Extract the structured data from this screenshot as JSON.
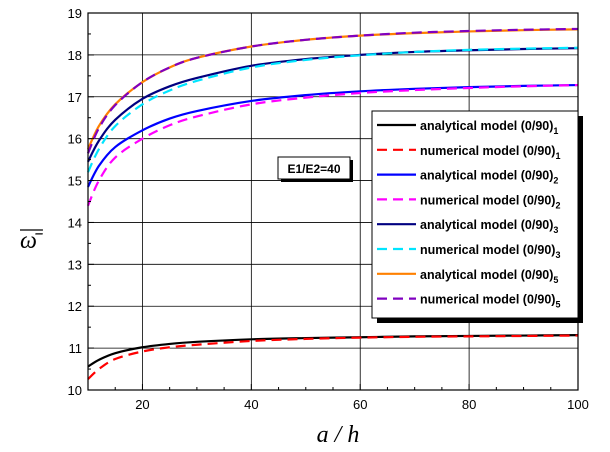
{
  "chart_data": {
    "type": "line",
    "title": "",
    "xlabel": "a / h",
    "ylabel": "ω̄",
    "xlim": [
      10,
      100
    ],
    "ylim": [
      10,
      19
    ],
    "xticks": [
      20,
      40,
      60,
      80,
      100
    ],
    "yticks": [
      10,
      11,
      12,
      13,
      14,
      15,
      16,
      17,
      18,
      19
    ],
    "grid": true,
    "legend_position": "right",
    "annotation": "E1/E2=40",
    "series": [
      {
        "name": "analytical model (0/90)",
        "subscript": "1",
        "color": "#000000",
        "dash": "solid",
        "x": [
          10,
          12,
          15,
          20,
          25,
          30,
          40,
          50,
          60,
          70,
          80,
          90,
          100
        ],
        "y": [
          10.56,
          10.72,
          10.88,
          11.02,
          11.1,
          11.15,
          11.21,
          11.24,
          11.26,
          11.28,
          11.29,
          11.3,
          11.31
        ]
      },
      {
        "name": "numerical model (0/90)",
        "subscript": "1",
        "color": "#ff0000",
        "dash": "dashed",
        "x": [
          10,
          12,
          15,
          20,
          25,
          30,
          40,
          50,
          60,
          70,
          80,
          90,
          100
        ],
        "y": [
          10.26,
          10.5,
          10.74,
          10.92,
          11.02,
          11.08,
          11.17,
          11.22,
          11.25,
          11.27,
          11.28,
          11.29,
          11.3
        ]
      },
      {
        "name": "analytical model (0/90)",
        "subscript": "2",
        "color": "#0000ff",
        "dash": "solid",
        "x": [
          10,
          12,
          15,
          20,
          25,
          30,
          40,
          50,
          60,
          70,
          80,
          90,
          100
        ],
        "y": [
          14.85,
          15.35,
          15.8,
          16.2,
          16.48,
          16.66,
          16.9,
          17.04,
          17.13,
          17.19,
          17.23,
          17.26,
          17.28
        ]
      },
      {
        "name": "numerical model (0/90)",
        "subscript": "2",
        "color": "#ff00ff",
        "dash": "dashed",
        "x": [
          10,
          12,
          15,
          20,
          25,
          30,
          40,
          50,
          60,
          70,
          80,
          90,
          100
        ],
        "y": [
          14.4,
          15.0,
          15.55,
          16.0,
          16.32,
          16.53,
          16.82,
          16.98,
          17.09,
          17.16,
          17.21,
          17.25,
          17.28
        ]
      },
      {
        "name": "analytical model (0/90)",
        "subscript": "3",
        "color": "#000080",
        "dash": "solid",
        "x": [
          10,
          12,
          15,
          20,
          25,
          30,
          40,
          50,
          60,
          70,
          80,
          90,
          100
        ],
        "y": [
          15.45,
          15.95,
          16.45,
          16.95,
          17.25,
          17.45,
          17.74,
          17.9,
          18.0,
          18.07,
          18.11,
          18.14,
          18.16
        ]
      },
      {
        "name": "numerical model (0/90)",
        "subscript": "3",
        "color": "#00e5ff",
        "dash": "dashed",
        "x": [
          10,
          12,
          15,
          20,
          25,
          30,
          40,
          50,
          60,
          70,
          80,
          90,
          100
        ],
        "y": [
          15.2,
          15.75,
          16.3,
          16.82,
          17.15,
          17.38,
          17.7,
          17.88,
          17.99,
          18.07,
          18.12,
          18.15,
          18.17
        ]
      },
      {
        "name": "analytical model (0/90)",
        "subscript": "5",
        "color": "#ff8000",
        "dash": "solid",
        "x": [
          10,
          12,
          15,
          20,
          25,
          30,
          40,
          50,
          60,
          70,
          80,
          90,
          100
        ],
        "y": [
          15.75,
          16.3,
          16.82,
          17.35,
          17.7,
          17.93,
          18.2,
          18.36,
          18.46,
          18.52,
          18.56,
          18.59,
          18.61
        ]
      },
      {
        "name": "numerical model (0/90)",
        "subscript": "5",
        "color": "#8000c0",
        "dash": "dashed",
        "x": [
          10,
          12,
          15,
          20,
          25,
          30,
          40,
          50,
          60,
          70,
          80,
          90,
          100
        ],
        "y": [
          15.65,
          16.25,
          16.8,
          17.35,
          17.7,
          17.93,
          18.2,
          18.36,
          18.46,
          18.53,
          18.57,
          18.6,
          18.62
        ]
      }
    ]
  }
}
